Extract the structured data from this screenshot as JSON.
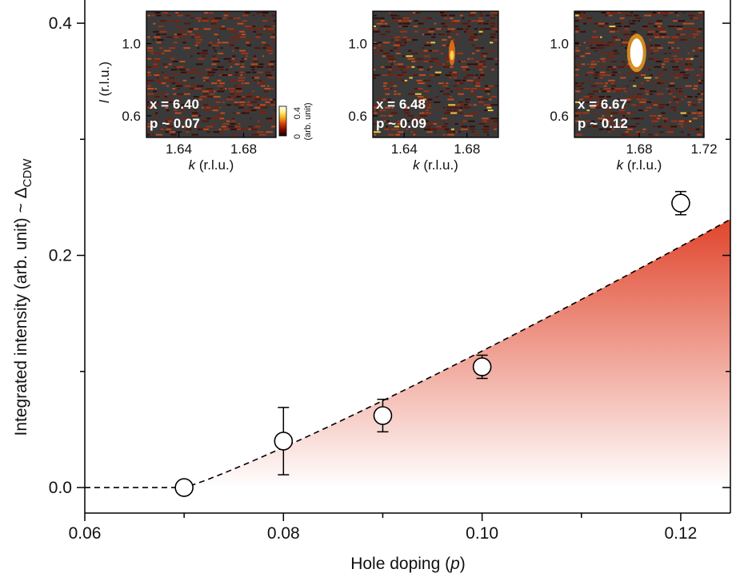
{
  "chart_data": {
    "type": "scatter",
    "xlabel_prefix": "Hole doping (",
    "xlabel_var": "p",
    "xlabel_suffix": ")",
    "ylabel_main": "Integrated intensity (arb. unit) ~ Δ",
    "ylabel_sub": "CDW",
    "xlim": [
      0.06,
      0.125
    ],
    "ylim": [
      -0.022,
      0.42
    ],
    "x_ticks": [
      0.06,
      0.08,
      0.1,
      0.12
    ],
    "x_tick_labels": [
      "0.06",
      "0.08",
      "0.10",
      "0.12"
    ],
    "x_minor_ticks": [
      0.07,
      0.09,
      0.11
    ],
    "y_ticks": [
      0.0,
      0.2,
      0.4
    ],
    "y_tick_labels": [
      "0.0",
      "0.2",
      "0.4"
    ],
    "y_minor_ticks": [
      0.1,
      0.3
    ],
    "points": [
      {
        "x": 0.07,
        "y": 0.0,
        "err": 0.0
      },
      {
        "x": 0.08,
        "y": 0.04,
        "err": 0.029
      },
      {
        "x": 0.09,
        "y": 0.062,
        "err": 0.014
      },
      {
        "x": 0.1,
        "y": 0.104,
        "err": 0.01
      },
      {
        "x": 0.12,
        "y": 0.245,
        "err": 0.01
      }
    ],
    "fit": {
      "style": "dashed",
      "onset": 0.07,
      "color": "#000000"
    },
    "shading": {
      "top_color": "#e0452c",
      "bottom_color": "#ffffff"
    },
    "insets": [
      {
        "x_ticks": [
          1.64,
          1.68
        ],
        "x_tick_labels": [
          "1.64",
          "1.68"
        ],
        "xlim": [
          1.62,
          1.7
        ],
        "y_ticks": [
          1.0,
          0.6
        ],
        "y_tick_labels": [
          "1.0",
          "0.6"
        ],
        "ylim": [
          0.48,
          1.18
        ],
        "xlabel_var": "k",
        "xlabel_suffix": " (r.l.u.)",
        "ylabel_var": "l",
        "ylabel_suffix": " (r.l.u.)",
        "ann_x": "x = 6.40",
        "ann_p": "p ~ 0.07",
        "signal": 0.0
      },
      {
        "x_ticks": [
          1.64,
          1.68
        ],
        "x_tick_labels": [
          "1.64",
          "1.68"
        ],
        "xlim": [
          1.62,
          1.7
        ],
        "y_ticks": [
          1.0,
          0.6
        ],
        "y_tick_labels": [
          "1.0",
          "0.6"
        ],
        "ylim": [
          0.48,
          1.18
        ],
        "xlabel_var": "k",
        "xlabel_suffix": " (r.l.u.)",
        "ann_x": "x = 6.48",
        "ann_p": "p ~ 0.09",
        "signal": 0.5
      },
      {
        "x_ticks": [
          1.68,
          1.72
        ],
        "x_tick_labels": [
          "1.68",
          "1.72"
        ],
        "xlim": [
          1.64,
          1.72
        ],
        "y_ticks": [
          1.0,
          0.6
        ],
        "y_tick_labels": [
          "1.0",
          "0.6"
        ],
        "ylim": [
          0.48,
          1.18
        ],
        "xlabel_var": "k",
        "xlabel_suffix": " (r.l.u.)",
        "ann_x": "x = 6.67",
        "ann_p": "p ~ 0.12",
        "signal": 1.0
      }
    ],
    "colorbar": {
      "min_label": "0",
      "max_label": "0.4",
      "unit_label": "(arb. unit)",
      "colors": [
        "#1a0000",
        "#7a0a00",
        "#d23a10",
        "#f7a21b",
        "#fff27a",
        "#ffffff"
      ]
    }
  }
}
